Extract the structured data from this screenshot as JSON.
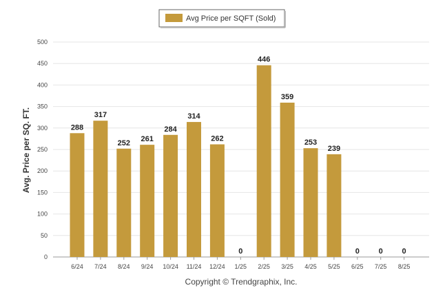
{
  "chart_data": {
    "type": "bar",
    "categories": [
      "6/24",
      "7/24",
      "8/24",
      "9/24",
      "10/24",
      "11/24",
      "12/24",
      "1/25",
      "2/25",
      "3/25",
      "4/25",
      "5/25",
      "6/25",
      "7/25",
      "8/25"
    ],
    "series": [
      {
        "name": "Avg Price per SQFT (Sold)",
        "values": [
          288,
          317,
          252,
          261,
          284,
          314,
          262,
          0,
          446,
          359,
          253,
          239,
          0,
          0,
          0
        ],
        "color": "#C49A3C"
      }
    ],
    "ylabel": "Avg. Price per SQ. FT.",
    "ylim": [
      0,
      500
    ],
    "yticks": [
      0,
      50,
      100,
      150,
      200,
      250,
      300,
      350,
      400,
      450,
      500
    ],
    "grid": true,
    "legend": "top-center"
  },
  "footer": {
    "copyright": "Copyright © Trendgraphix, Inc."
  }
}
